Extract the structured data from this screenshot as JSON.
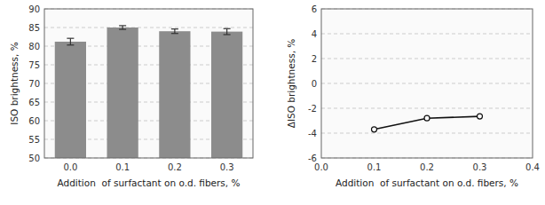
{
  "chart_data": [
    {
      "type": "bar",
      "categories": [
        "0.0",
        "0.1",
        "0.2",
        "0.3"
      ],
      "values": [
        81.2,
        85.0,
        84.0,
        83.9
      ],
      "errors": [
        0.9,
        0.5,
        0.6,
        0.8
      ],
      "color": "#8c8c8c",
      "ylim": [
        50,
        90
      ],
      "yticks": [
        50,
        55,
        60,
        65,
        70,
        75,
        80,
        85,
        90
      ],
      "ylabel": "ISO brightness, %",
      "xlabel": "Addition  of surfactant on o.d. fibers, %",
      "grid": true
    },
    {
      "type": "line",
      "x": [
        0.1,
        0.2,
        0.3
      ],
      "values": [
        -3.7,
        -2.8,
        -2.65
      ],
      "xlim": [
        0.0,
        0.4
      ],
      "ylim": [
        -6,
        6
      ],
      "xticks": [
        {
          "value": 0.0,
          "label": "0.0"
        },
        0.1,
        0.2,
        0.3,
        0.4
      ],
      "yticks": [
        -6,
        -4,
        -2,
        0,
        2,
        4,
        6
      ],
      "ylabel": "ΔISO brightness, %",
      "xlabel": "Addition  of surfactant on o.d. fibers, %",
      "color": "#111111",
      "marker": "circle",
      "grid": true
    }
  ]
}
